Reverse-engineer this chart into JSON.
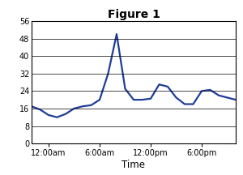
{
  "title": "Figure 1",
  "xlabel": "Time",
  "line_color": "#1f3d99",
  "background_color": "#ffffff",
  "ylim": [
    0,
    56
  ],
  "yticks": [
    0,
    8,
    16,
    24,
    32,
    40,
    48,
    56
  ],
  "xtick_labels": [
    "12:00am",
    "6:00am",
    "12:00pm",
    "6:00pm"
  ],
  "title_fontsize": 10,
  "tick_fontsize": 7,
  "label_fontsize": 8.5,
  "line_width": 1.6,
  "x": [
    0,
    0.5,
    1,
    1.5,
    2,
    2.5,
    3,
    3.5,
    4,
    4.5,
    5,
    5.5,
    6,
    6.5,
    7,
    7.5,
    8,
    8.5,
    9,
    9.5,
    10,
    10.5,
    11,
    12
  ],
  "y": [
    17,
    15.5,
    13,
    12,
    13.5,
    16,
    17,
    17.5,
    20,
    32,
    50,
    25,
    20,
    20,
    20.5,
    27,
    26,
    21,
    18,
    18,
    24,
    24.5,
    22,
    20
  ],
  "xtick_positions": [
    1,
    4,
    7,
    10
  ],
  "xlim": [
    0,
    12
  ]
}
